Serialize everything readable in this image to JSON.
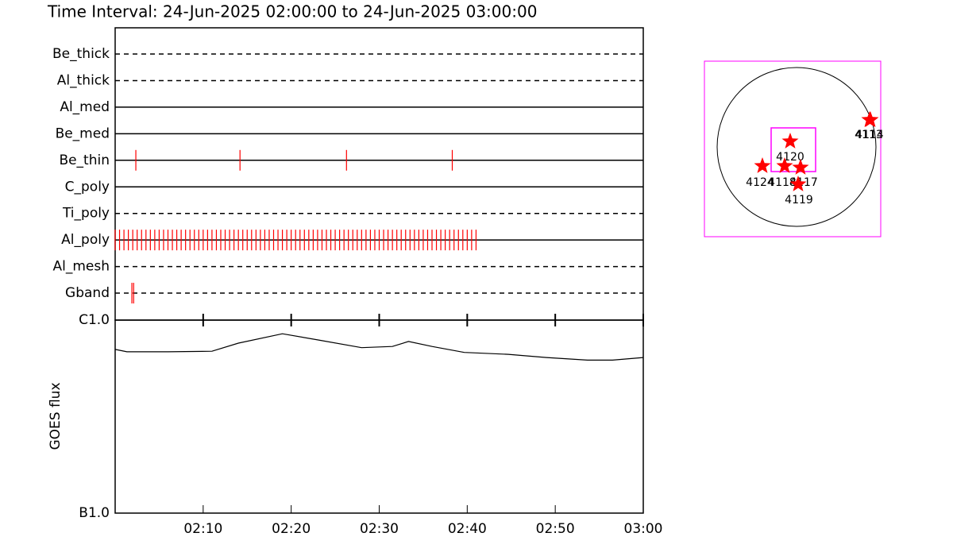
{
  "title": "Time Interval: 24-Jun-2025 02:00:00 to 24-Jun-2025 03:00:00",
  "chart_data": [
    {
      "type": "event",
      "categories": [
        "Be_thick",
        "Al_thick",
        "Al_med",
        "Be_med",
        "Be_thin",
        "C_poly",
        "Ti_poly",
        "Al_poly",
        "Al_mesh",
        "Gband"
      ],
      "dashed": [
        true,
        true,
        false,
        false,
        false,
        false,
        true,
        false,
        true,
        true
      ],
      "events": [
        [],
        [],
        [],
        [],
        [
          "02:02:21",
          "02:14:11",
          "02:26:17",
          "02:38:18"
        ],
        [],
        [],
        [
          "02:00:00",
          "02:00:30",
          "02:01:00",
          "02:01:30",
          "02:02:00",
          "02:02:30",
          "02:03:00",
          "02:03:30",
          "02:04:00",
          "02:04:30",
          "02:05:00",
          "02:05:30",
          "02:06:00",
          "02:06:30",
          "02:07:00",
          "02:07:30",
          "02:08:00",
          "02:08:30",
          "02:09:00",
          "02:09:30",
          "02:10:00",
          "02:10:30",
          "02:11:00",
          "02:11:30",
          "02:12:00",
          "02:12:30",
          "02:13:00",
          "02:13:30",
          "02:14:00",
          "02:14:30",
          "02:15:00",
          "02:15:30",
          "02:16:00",
          "02:16:30",
          "02:17:00",
          "02:17:30",
          "02:18:00",
          "02:18:30",
          "02:19:00",
          "02:19:30",
          "02:20:00",
          "02:20:30",
          "02:21:00",
          "02:21:30",
          "02:22:00",
          "02:22:30",
          "02:23:00",
          "02:23:30",
          "02:24:00",
          "02:24:30",
          "02:25:00",
          "02:25:30",
          "02:26:00",
          "02:26:30",
          "02:27:00",
          "02:27:30",
          "02:28:00",
          "02:28:30",
          "02:29:00",
          "02:29:30",
          "02:30:00",
          "02:30:30",
          "02:31:00",
          "02:31:30",
          "02:32:00",
          "02:32:30",
          "02:33:00",
          "02:33:30",
          "02:34:00",
          "02:34:30",
          "02:35:00",
          "02:35:30",
          "02:36:00",
          "02:36:30",
          "02:37:00",
          "02:37:30",
          "02:38:00",
          "02:38:30",
          "02:39:00",
          "02:39:30",
          "02:40:00",
          "02:40:30",
          "02:41:00"
        ],
        [],
        [
          "02:01:54",
          "02:02:06"
        ]
      ],
      "xlim": [
        "02:00",
        "03:00"
      ],
      "color": "#ff0000"
    },
    {
      "type": "line",
      "ylabel": "GOES flux",
      "x": [
        "02:00:00",
        "02:01:20",
        "02:06:00",
        "02:11:00",
        "02:14:00",
        "02:19:00",
        "02:23:00",
        "02:28:00",
        "02:31:30",
        "02:33:20",
        "02:36:00",
        "02:39:40",
        "02:44:40",
        "02:49:00",
        "02:53:40",
        "02:56:30",
        "03:00:00"
      ],
      "values": [
        7.05e-07,
        6.85e-07,
        6.85e-07,
        6.9e-07,
        7.6e-07,
        8.5e-07,
        7.9e-07,
        7.2e-07,
        7.3e-07,
        7.75e-07,
        7.3e-07,
        6.8e-07,
        6.65e-07,
        6.4e-07,
        6.2e-07,
        6.2e-07,
        6.4e-07
      ],
      "xlim": [
        "02:00",
        "03:00"
      ],
      "xticks": [
        "02:10",
        "02:20",
        "02:30",
        "02:40",
        "02:50",
        "03:00"
      ],
      "ylim": [
        1e-07,
        1e-06
      ],
      "yticks": [
        {
          "value": 1e-07,
          "label": "B1.0"
        },
        {
          "value": 1e-06,
          "label": "C1.0"
        }
      ],
      "log_y": true,
      "color": "#000000"
    },
    {
      "type": "map",
      "points": [
        {
          "label": "4120"
        },
        {
          "label": "4124"
        },
        {
          "label": "4118"
        },
        {
          "label": "4117"
        },
        {
          "label": "4119"
        },
        {
          "label": "4113"
        },
        {
          "label": "4114"
        }
      ],
      "color": "#ff0000",
      "box_color": "#ff00ff"
    }
  ]
}
